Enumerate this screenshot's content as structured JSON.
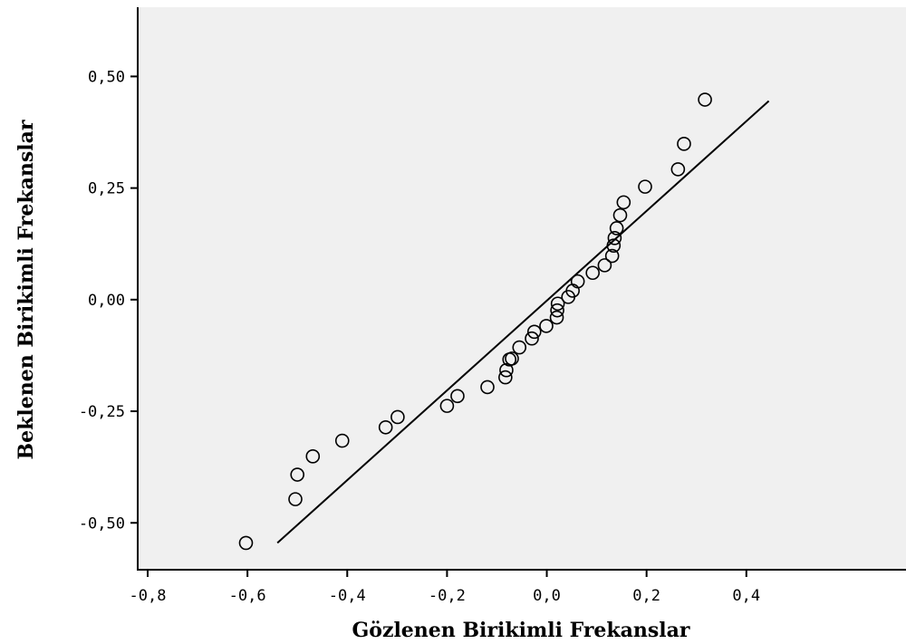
{
  "chart_data": {
    "type": "scatter",
    "title": "",
    "xlabel": "Gözlenen Birikimli Frekanslar",
    "ylabel": "Beklenen Birikimli Frekanslar",
    "xlim": [
      -0.82,
      0.72
    ],
    "ylim": [
      -0.605,
      0.655
    ],
    "x_ticks": [
      {
        "value": -0.8,
        "label": "-0,8"
      },
      {
        "value": -0.6,
        "label": "-0,6"
      },
      {
        "value": -0.4,
        "label": "-0,4"
      },
      {
        "value": -0.2,
        "label": "-0,2"
      },
      {
        "value": 0.0,
        "label": "0,0"
      },
      {
        "value": 0.2,
        "label": "0,2"
      },
      {
        "value": 0.4,
        "label": "0,4"
      }
    ],
    "y_ticks": [
      {
        "value": 0.5,
        "label": "0,50"
      },
      {
        "value": 0.25,
        "label": "0,25"
      },
      {
        "value": 0.0,
        "label": "0,00"
      },
      {
        "value": -0.25,
        "label": "-0,25"
      },
      {
        "value": -0.5,
        "label": "-0,50"
      }
    ],
    "grid": false,
    "background_color": "#f0f0f0",
    "marker": "open-circle",
    "reference_line": {
      "x": [
        -0.54,
        0.445
      ],
      "y": [
        -0.545,
        0.445
      ]
    },
    "points": [
      {
        "x": -0.603,
        "y": -0.545
      },
      {
        "x": -0.504,
        "y": -0.447
      },
      {
        "x": -0.5,
        "y": -0.392
      },
      {
        "x": -0.469,
        "y": -0.351
      },
      {
        "x": -0.41,
        "y": -0.316
      },
      {
        "x": -0.323,
        "y": -0.286
      },
      {
        "x": -0.299,
        "y": -0.263
      },
      {
        "x": -0.2,
        "y": -0.238
      },
      {
        "x": -0.179,
        "y": -0.216
      },
      {
        "x": -0.119,
        "y": -0.196
      },
      {
        "x": -0.083,
        "y": -0.174
      },
      {
        "x": -0.081,
        "y": -0.158
      },
      {
        "x": -0.075,
        "y": -0.134
      },
      {
        "x": -0.07,
        "y": -0.132
      },
      {
        "x": -0.055,
        "y": -0.107
      },
      {
        "x": -0.03,
        "y": -0.087
      },
      {
        "x": -0.025,
        "y": -0.072
      },
      {
        "x": -0.001,
        "y": -0.059
      },
      {
        "x": 0.02,
        "y": -0.04
      },
      {
        "x": 0.021,
        "y": -0.024
      },
      {
        "x": 0.022,
        "y": -0.009
      },
      {
        "x": 0.043,
        "y": 0.006
      },
      {
        "x": 0.052,
        "y": 0.02
      },
      {
        "x": 0.062,
        "y": 0.041
      },
      {
        "x": 0.092,
        "y": 0.06
      },
      {
        "x": 0.116,
        "y": 0.077
      },
      {
        "x": 0.131,
        "y": 0.098
      },
      {
        "x": 0.134,
        "y": 0.121
      },
      {
        "x": 0.136,
        "y": 0.138
      },
      {
        "x": 0.14,
        "y": 0.16
      },
      {
        "x": 0.147,
        "y": 0.189
      },
      {
        "x": 0.154,
        "y": 0.218
      },
      {
        "x": 0.197,
        "y": 0.253
      },
      {
        "x": 0.263,
        "y": 0.292
      },
      {
        "x": 0.275,
        "y": 0.349
      },
      {
        "x": 0.317,
        "y": 0.448
      }
    ]
  }
}
